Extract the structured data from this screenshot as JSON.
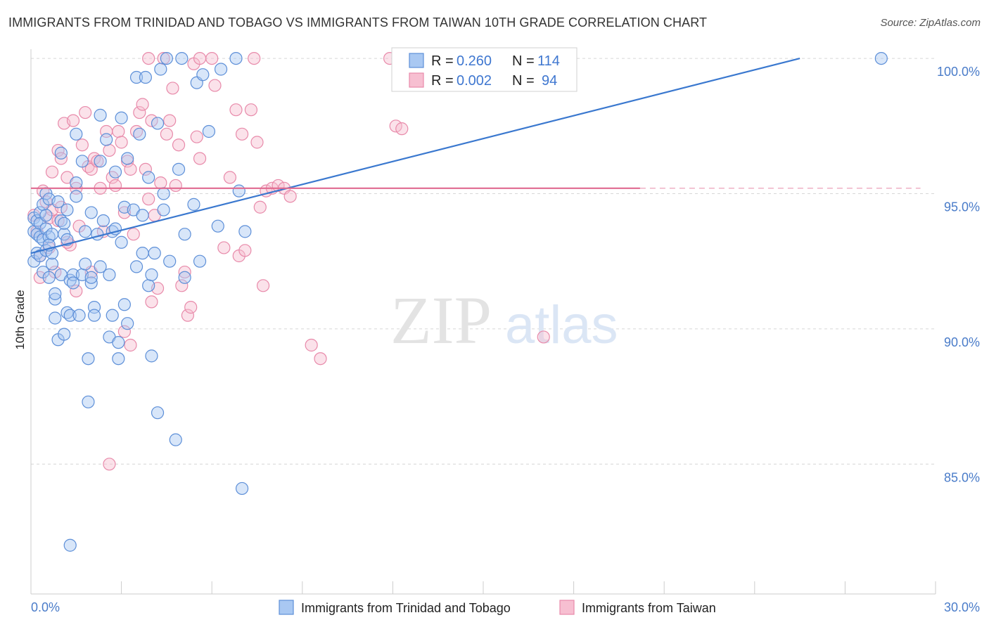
{
  "title": "IMMIGRANTS FROM TRINIDAD AND TOBAGO VS IMMIGRANTS FROM TAIWAN 10TH GRADE CORRELATION CHART",
  "source": "Source: ZipAtlas.com",
  "watermark": {
    "zip": "ZIP",
    "atlas": "atlas"
  },
  "colors": {
    "series1_fill": "#a9c8f2",
    "series1_stroke": "#5d8fd8",
    "series1_line": "#3a78cf",
    "series2_fill": "#f7bfd1",
    "series2_stroke": "#e88aaa",
    "series2_line": "#e06a90",
    "axis_text": "#4a7cc9",
    "grid": "#d6d6d6"
  },
  "stats": {
    "series1": {
      "r_label": "R =",
      "r_value": "0.260",
      "n_label": "N =",
      "n_value": "114"
    },
    "series2": {
      "r_label": "R =",
      "r_value": "0.002",
      "n_label": "N =",
      "n_value": "94"
    }
  },
  "chart_data": {
    "type": "scatter",
    "title": "IMMIGRANTS FROM TRINIDAD AND TOBAGO VS IMMIGRANTS FROM TAIWAN 10TH GRADE CORRELATION CHART",
    "xlabel": "",
    "ylabel": "10th Grade",
    "xlim": [
      0,
      30
    ],
    "ylim": [
      80.2,
      100.6
    ],
    "x_tick_labels": {
      "min": "0.0%",
      "max": "30.0%"
    },
    "y_ticks": [
      {
        "value": 100,
        "label": "100.0%"
      },
      {
        "value": 95,
        "label": "95.0%"
      },
      {
        "value": 90,
        "label": "90.0%"
      },
      {
        "value": 85,
        "label": "85.0%"
      }
    ],
    "grid": true,
    "legend_position": "bottom",
    "series": [
      {
        "name": "Immigrants from Trinidad and Tobago",
        "trend": {
          "x": [
            0.0,
            25.5
          ],
          "y": [
            92.8,
            100.0
          ]
        },
        "points": [
          [
            0.1,
            94.1
          ],
          [
            0.1,
            93.6
          ],
          [
            0.1,
            92.5
          ],
          [
            0.2,
            94.0
          ],
          [
            0.2,
            93.5
          ],
          [
            0.2,
            92.8
          ],
          [
            0.3,
            94.3
          ],
          [
            0.3,
            93.9
          ],
          [
            0.3,
            93.4
          ],
          [
            0.3,
            92.7
          ],
          [
            0.4,
            94.6
          ],
          [
            0.4,
            93.3
          ],
          [
            0.4,
            92.1
          ],
          [
            0.5,
            95.0
          ],
          [
            0.5,
            94.2
          ],
          [
            0.5,
            93.7
          ],
          [
            0.5,
            92.9
          ],
          [
            0.6,
            94.8
          ],
          [
            0.6,
            93.4
          ],
          [
            0.6,
            91.9
          ],
          [
            0.7,
            92.4
          ],
          [
            0.7,
            92.8
          ],
          [
            0.7,
            93.5
          ],
          [
            0.8,
            91.1
          ],
          [
            0.8,
            91.3
          ],
          [
            0.8,
            90.4
          ],
          [
            0.9,
            89.6
          ],
          [
            0.9,
            94.7
          ],
          [
            1.0,
            94.0
          ],
          [
            1.0,
            92.0
          ],
          [
            1.0,
            96.5
          ],
          [
            1.1,
            93.5
          ],
          [
            1.1,
            89.8
          ],
          [
            1.2,
            94.4
          ],
          [
            1.2,
            93.3
          ],
          [
            1.2,
            90.6
          ],
          [
            1.3,
            91.8
          ],
          [
            1.3,
            90.5
          ],
          [
            1.4,
            92.0
          ],
          [
            1.4,
            91.7
          ],
          [
            1.5,
            95.4
          ],
          [
            1.5,
            94.9
          ],
          [
            1.5,
            97.2
          ],
          [
            1.6,
            90.5
          ],
          [
            1.7,
            96.2
          ],
          [
            1.7,
            92.0
          ],
          [
            1.8,
            92.4
          ],
          [
            1.8,
            93.6
          ],
          [
            1.9,
            88.9
          ],
          [
            1.9,
            87.3
          ],
          [
            2.0,
            94.3
          ],
          [
            2.0,
            91.7
          ],
          [
            2.0,
            91.9
          ],
          [
            2.1,
            90.8
          ],
          [
            2.1,
            90.5
          ],
          [
            2.2,
            93.5
          ],
          [
            2.3,
            96.2
          ],
          [
            2.3,
            92.3
          ],
          [
            2.3,
            97.9
          ],
          [
            2.4,
            94.0
          ],
          [
            2.5,
            97.0
          ],
          [
            2.6,
            92.0
          ],
          [
            2.6,
            89.7
          ],
          [
            2.7,
            90.5
          ],
          [
            2.7,
            93.6
          ],
          [
            2.8,
            93.7
          ],
          [
            2.8,
            95.8
          ],
          [
            2.9,
            88.9
          ],
          [
            2.9,
            89.5
          ],
          [
            3.0,
            93.2
          ],
          [
            3.0,
            97.8
          ],
          [
            3.1,
            94.5
          ],
          [
            3.1,
            90.9
          ],
          [
            3.2,
            90.2
          ],
          [
            3.2,
            96.3
          ],
          [
            3.4,
            94.4
          ],
          [
            3.5,
            99.3
          ],
          [
            3.5,
            92.3
          ],
          [
            3.6,
            97.2
          ],
          [
            3.7,
            94.2
          ],
          [
            3.7,
            92.8
          ],
          [
            3.8,
            99.3
          ],
          [
            3.9,
            95.6
          ],
          [
            3.9,
            91.6
          ],
          [
            4.0,
            92.0
          ],
          [
            4.0,
            89.0
          ],
          [
            4.1,
            92.8
          ],
          [
            4.2,
            97.6
          ],
          [
            4.3,
            99.6
          ],
          [
            4.4,
            95.0
          ],
          [
            4.4,
            94.4
          ],
          [
            4.5,
            100.0
          ],
          [
            4.6,
            92.5
          ],
          [
            4.8,
            85.9
          ],
          [
            4.9,
            95.9
          ],
          [
            5.0,
            100.0
          ],
          [
            5.1,
            93.5
          ],
          [
            5.1,
            91.9
          ],
          [
            5.4,
            94.6
          ],
          [
            5.5,
            99.1
          ],
          [
            5.6,
            92.5
          ],
          [
            5.7,
            99.4
          ],
          [
            5.9,
            97.3
          ],
          [
            6.2,
            93.8
          ],
          [
            6.3,
            99.6
          ],
          [
            6.8,
            100.0
          ],
          [
            6.9,
            95.1
          ],
          [
            7.1,
            93.6
          ],
          [
            7.0,
            84.1
          ],
          [
            4.2,
            86.9
          ],
          [
            1.3,
            82.0
          ],
          [
            28.2,
            100.0
          ],
          [
            0.6,
            93.1
          ],
          [
            1.1,
            93.9
          ]
        ]
      },
      {
        "name": "Immigrants from Taiwan",
        "trend": {
          "x": [
            0.0,
            29.5
          ],
          "y": [
            95.2,
            95.2
          ],
          "solid_until_x": 20.2
        },
        "points": [
          [
            0.1,
            94.2
          ],
          [
            0.2,
            93.6
          ],
          [
            0.3,
            92.7
          ],
          [
            0.3,
            91.9
          ],
          [
            0.4,
            95.1
          ],
          [
            0.5,
            94.7
          ],
          [
            0.6,
            94.1
          ],
          [
            0.7,
            95.8
          ],
          [
            0.7,
            94.4
          ],
          [
            0.8,
            92.1
          ],
          [
            0.9,
            96.6
          ],
          [
            1.0,
            96.3
          ],
          [
            1.0,
            94.5
          ],
          [
            1.1,
            97.6
          ],
          [
            1.2,
            95.6
          ],
          [
            1.3,
            93.1
          ],
          [
            1.4,
            97.7
          ],
          [
            1.5,
            95.2
          ],
          [
            1.5,
            91.4
          ],
          [
            1.6,
            93.8
          ],
          [
            1.7,
            96.8
          ],
          [
            1.8,
            98.0
          ],
          [
            1.9,
            96.0
          ],
          [
            2.0,
            95.9
          ],
          [
            2.1,
            96.3
          ],
          [
            2.2,
            96.2
          ],
          [
            2.3,
            95.2
          ],
          [
            2.4,
            93.6
          ],
          [
            2.5,
            97.3
          ],
          [
            2.6,
            96.6
          ],
          [
            2.7,
            95.6
          ],
          [
            2.8,
            95.3
          ],
          [
            2.9,
            97.3
          ],
          [
            3.0,
            96.9
          ],
          [
            3.1,
            94.3
          ],
          [
            3.2,
            96.2
          ],
          [
            3.3,
            95.9
          ],
          [
            3.4,
            93.5
          ],
          [
            3.5,
            97.3
          ],
          [
            3.6,
            98.0
          ],
          [
            3.7,
            98.3
          ],
          [
            3.8,
            95.9
          ],
          [
            3.9,
            94.8
          ],
          [
            4.0,
            97.7
          ],
          [
            4.1,
            94.2
          ],
          [
            4.2,
            91.5
          ],
          [
            4.3,
            95.4
          ],
          [
            4.4,
            100.0
          ],
          [
            4.5,
            97.2
          ],
          [
            4.6,
            97.7
          ],
          [
            4.7,
            98.9
          ],
          [
            4.8,
            95.3
          ],
          [
            4.9,
            96.8
          ],
          [
            5.0,
            91.6
          ],
          [
            5.1,
            92.1
          ],
          [
            5.2,
            90.5
          ],
          [
            5.3,
            90.8
          ],
          [
            5.4,
            99.8
          ],
          [
            5.5,
            97.1
          ],
          [
            5.6,
            96.3
          ],
          [
            6.0,
            100.0
          ],
          [
            6.4,
            93.0
          ],
          [
            6.6,
            95.6
          ],
          [
            6.8,
            98.1
          ],
          [
            6.9,
            92.7
          ],
          [
            7.0,
            97.2
          ],
          [
            7.1,
            92.9
          ],
          [
            7.3,
            98.1
          ],
          [
            7.5,
            96.9
          ],
          [
            7.6,
            94.5
          ],
          [
            7.7,
            91.6
          ],
          [
            7.8,
            95.1
          ],
          [
            8.0,
            95.2
          ],
          [
            8.2,
            95.3
          ],
          [
            8.4,
            95.2
          ],
          [
            8.6,
            94.9
          ],
          [
            9.3,
            89.4
          ],
          [
            9.6,
            88.9
          ],
          [
            11.9,
            100.0
          ],
          [
            12.1,
            97.5
          ],
          [
            12.3,
            97.4
          ],
          [
            17.0,
            89.7
          ],
          [
            2.6,
            85.0
          ],
          [
            3.1,
            89.9
          ],
          [
            3.3,
            89.4
          ],
          [
            4.0,
            91.0
          ],
          [
            2.0,
            92.1
          ],
          [
            1.2,
            93.2
          ],
          [
            0.9,
            94.0
          ],
          [
            0.6,
            93.0
          ],
          [
            5.6,
            100.0
          ],
          [
            7.4,
            100.0
          ],
          [
            3.9,
            100.0
          ],
          [
            6.1,
            99.0
          ]
        ]
      }
    ]
  },
  "legend": {
    "series1": "Immigrants from Trinidad and Tobago",
    "series2": "Immigrants from Taiwan"
  }
}
